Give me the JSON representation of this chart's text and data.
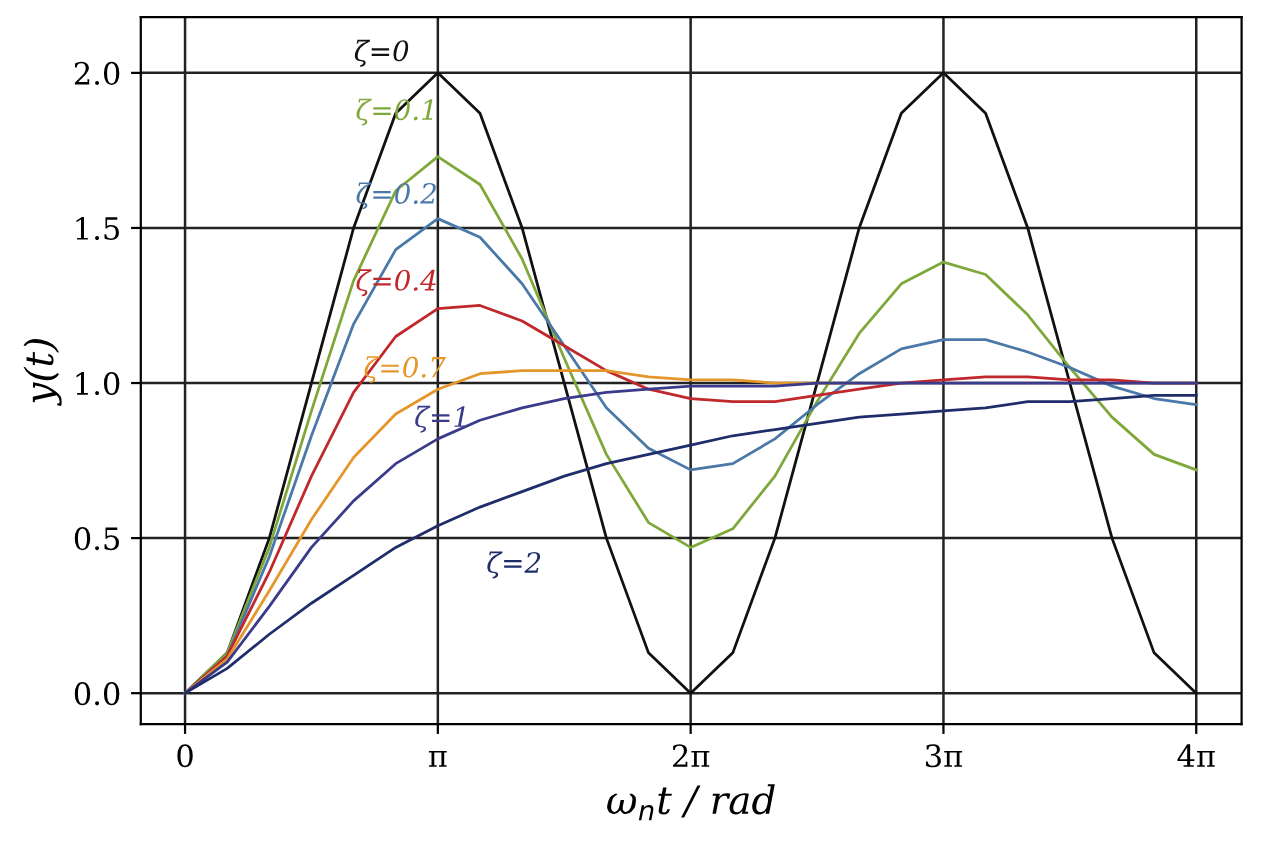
{
  "chart_data": {
    "type": "line",
    "xlabel": "ω$_{n}$t / rad",
    "ylabel": "y(t)",
    "x": [
      0,
      0.5236,
      1.0472,
      1.5708,
      2.0944,
      2.618,
      3.1416,
      3.6652,
      4.1888,
      4.7124,
      5.236,
      5.7596,
      6.2832,
      6.8068,
      7.3304,
      7.854,
      8.3776,
      8.9012,
      9.4248,
      9.9484,
      10.472,
      10.9956,
      11.5192,
      12.0428,
      12.5664
    ],
    "series": [
      {
        "name": "ζ=0",
        "color": "#111111",
        "values": [
          0,
          0.13,
          0.5,
          1,
          1.5,
          1.87,
          2,
          1.87,
          1.5,
          1,
          0.5,
          0.13,
          0,
          0.13,
          0.5,
          1,
          1.5,
          1.87,
          2,
          1.87,
          1.5,
          1,
          0.5,
          0.13,
          0
        ]
      },
      {
        "name": "ζ=0.1",
        "color": "#7fa83a",
        "values": [
          0,
          0.13,
          0.47,
          0.91,
          1.33,
          1.62,
          1.73,
          1.64,
          1.4,
          1.08,
          0.77,
          0.55,
          0.47,
          0.53,
          0.7,
          0.94,
          1.16,
          1.32,
          1.39,
          1.35,
          1.22,
          1.05,
          0.89,
          0.77,
          0.72
        ]
      },
      {
        "name": "ζ=0.2",
        "color": "#4a78a8",
        "values": [
          0,
          0.12,
          0.44,
          0.83,
          1.19,
          1.43,
          1.53,
          1.47,
          1.32,
          1.12,
          0.92,
          0.79,
          0.72,
          0.74,
          0.82,
          0.93,
          1.03,
          1.11,
          1.14,
          1.14,
          1.1,
          1.05,
          0.99,
          0.95,
          0.93
        ]
      },
      {
        "name": "ζ=0.4",
        "color": "#c0282c",
        "values": [
          0,
          0.12,
          0.39,
          0.7,
          0.97,
          1.15,
          1.24,
          1.25,
          1.2,
          1.12,
          1.04,
          0.98,
          0.95,
          0.94,
          0.94,
          0.96,
          0.98,
          1.0,
          1.01,
          1.02,
          1.02,
          1.01,
          1.01,
          1.0,
          1.0
        ]
      },
      {
        "name": "ζ=0.7",
        "color": "#e5962a",
        "values": [
          0,
          0.11,
          0.33,
          0.56,
          0.76,
          0.9,
          0.98,
          1.03,
          1.04,
          1.04,
          1.04,
          1.02,
          1.01,
          1.01,
          1.0,
          1.0,
          1.0,
          null,
          null,
          null,
          null,
          null,
          null,
          null,
          null
        ]
      },
      {
        "name": "ζ=1",
        "color": "#3b3b8c",
        "values": [
          0,
          0.1,
          0.28,
          0.47,
          0.62,
          0.74,
          0.82,
          0.88,
          0.92,
          0.95,
          0.97,
          0.98,
          0.99,
          0.99,
          0.99,
          1.0,
          1.0,
          1.0,
          1.0,
          1.0,
          1.0,
          1.0,
          1.0,
          1.0,
          1.0
        ]
      },
      {
        "name": "ζ=2",
        "color": "#1f2d6b",
        "values": [
          0,
          0.08,
          0.19,
          0.29,
          0.38,
          0.47,
          0.54,
          0.6,
          0.65,
          0.7,
          0.74,
          0.77,
          0.8,
          0.83,
          0.85,
          0.87,
          0.89,
          0.9,
          0.91,
          0.92,
          0.94,
          0.94,
          0.95,
          0.96,
          0.96
        ]
      }
    ],
    "xlim": [
      -0.55,
      13.13
    ],
    "ylim": [
      -0.1,
      2.18
    ],
    "xticks": [
      0,
      {
        "value": 3.1416,
        "label": "π"
      },
      {
        "value": 6.2832,
        "label": "2π"
      },
      {
        "value": 9.4248,
        "label": "3π"
      },
      {
        "value": 12.5664,
        "label": "4π"
      }
    ],
    "yticks": [
      {
        "value": 0,
        "label": "0.0"
      },
      {
        "value": 0.5,
        "label": "0.5"
      },
      {
        "value": 1,
        "label": "1.0"
      },
      {
        "value": 1.5,
        "label": "1.5"
      },
      {
        "value": 2,
        "label": "2.0"
      }
    ],
    "grid": true,
    "legend": false,
    "marker": "none",
    "line_style": "solid"
  }
}
